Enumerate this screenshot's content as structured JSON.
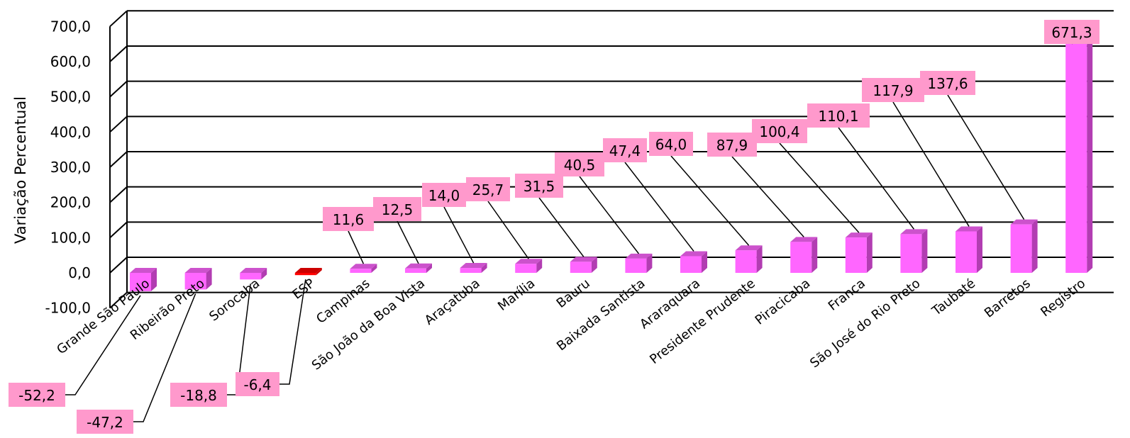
{
  "chart_data": {
    "type": "bar",
    "title": "",
    "xlabel": "",
    "ylabel": "Variação Percentual",
    "ylim": [
      -100,
      700
    ],
    "yticks": [
      "-100,0",
      "0,0",
      "100,0",
      "200,0",
      "300,0",
      "400,0",
      "500,0",
      "600,0",
      "700,0"
    ],
    "grid": true,
    "legend": "none",
    "categories": [
      "Grande São Paulo",
      "Ribeirão Preto",
      "Sorocaba",
      "ESP",
      "Campinas",
      "São João da Boa Vista",
      "Araçatuba",
      "Marília",
      "Bauru",
      "Baixada Santista",
      "Araraquara",
      "Presidente Prudente",
      "Piracicaba",
      "Franca",
      "São José do Rio Preto",
      "Taubaté",
      "Barretos",
      "Registro"
    ],
    "values": [
      -52.2,
      -47.2,
      -18.8,
      -6.4,
      11.6,
      12.5,
      14.0,
      25.7,
      31.5,
      40.5,
      47.4,
      64.0,
      87.9,
      100.4,
      110.1,
      117.9,
      137.6,
      671.3
    ],
    "value_labels": [
      "-52,2",
      "-47,2",
      "-18,8",
      "-6,4",
      "11,6",
      "12,5",
      "14,0",
      "25,7",
      "31,5",
      "40,5",
      "47,4",
      "64,0",
      "87,9",
      "100,4",
      "110,1",
      "117,9",
      "137,6",
      "671,3"
    ],
    "colors": {
      "bar_front": "#ff66ff",
      "bar_side": "#b23db2",
      "bar_top": "#cc52cc",
      "highlight_front": "#ff0000",
      "highlight_top": "#cc0000",
      "highlight_category": "ESP",
      "label_background": "#ff99cc"
    }
  }
}
